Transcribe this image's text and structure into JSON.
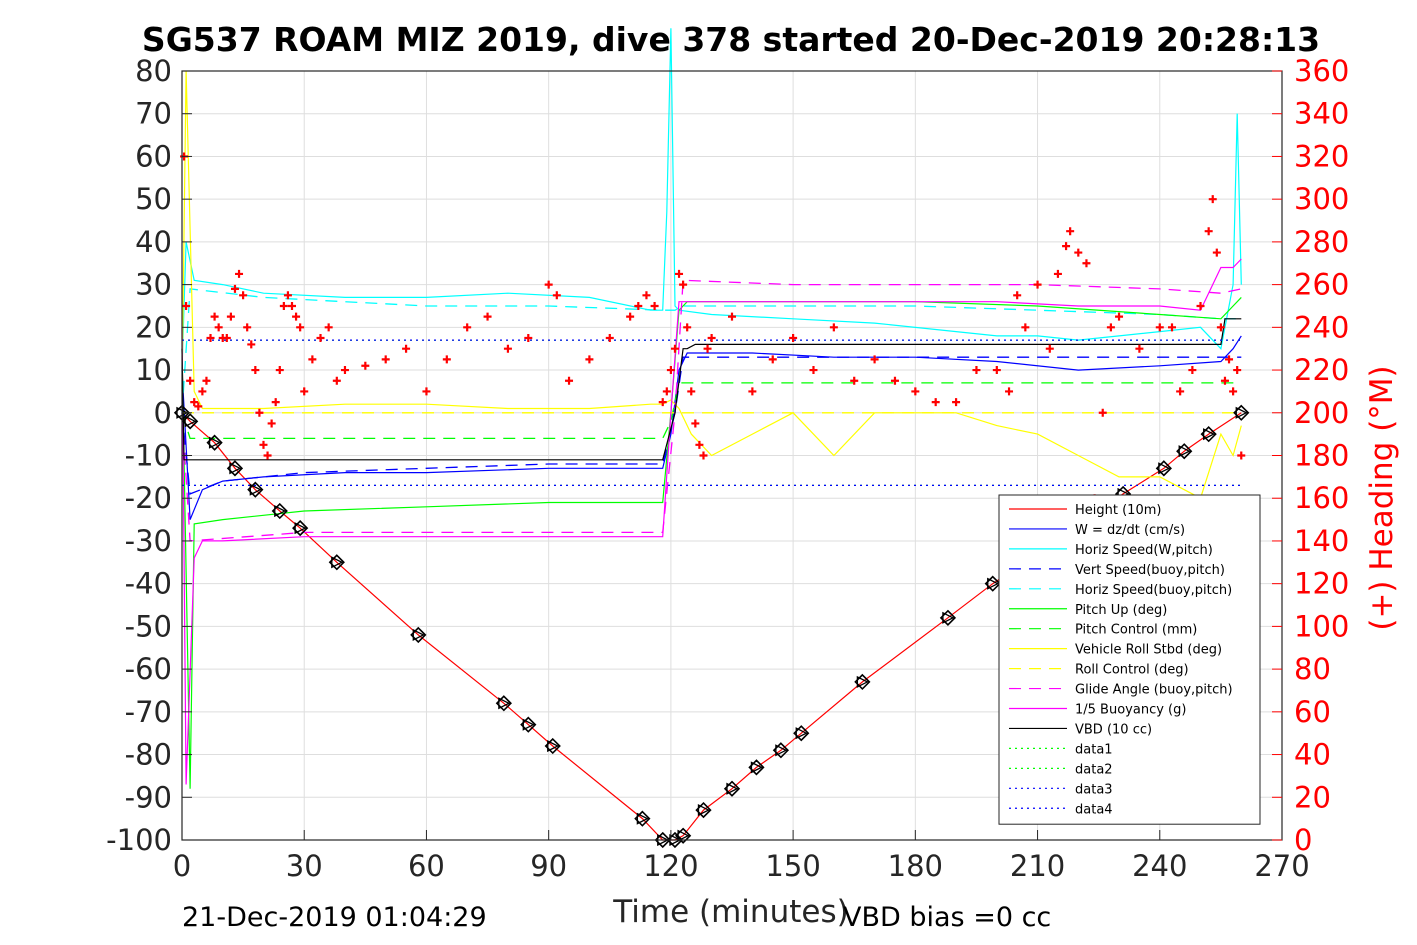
{
  "chart_data": {
    "type": "line",
    "title": "SG537 ROAM MIZ 2019, dive 378 started 20-Dec-2019 20:28:13",
    "xlabel": "Time (minutes)",
    "ylabel": "",
    "ylabel_right": "(+) Heading (°M)",
    "xlim": [
      0,
      270
    ],
    "ylim": [
      -100,
      80
    ],
    "ylim_right": [
      0,
      360
    ],
    "xticks": [
      "0",
      "30",
      "60",
      "90",
      "120",
      "150",
      "180",
      "210",
      "240",
      "270"
    ],
    "yticks": [
      "80",
      "70",
      "60",
      "50",
      "40",
      "30",
      "20",
      "10",
      "0",
      "-10",
      "-20",
      "-30",
      "-40",
      "-50",
      "-60",
      "-70",
      "-80",
      "-90",
      "-100"
    ],
    "yticks_right": [
      "360",
      "340",
      "320",
      "300",
      "280",
      "260",
      "240",
      "220",
      "200",
      "180",
      "160",
      "140",
      "120",
      "100",
      "80",
      "60",
      "40",
      "20",
      "0"
    ],
    "grid": true,
    "legend_position": "bottom-right",
    "footer_left": "21-Dec-2019 01:04:29",
    "footer_right": "VBD bias =0 cc",
    "series": [
      {
        "name": "Height (10m)",
        "color": "#ff0000",
        "style": "solid",
        "axis": "left",
        "x": [
          0,
          2,
          8,
          13,
          18,
          24,
          29,
          38,
          58,
          79,
          85,
          91,
          113,
          118,
          121,
          123,
          128,
          135,
          141,
          147,
          152,
          167,
          188,
          199,
          210,
          231,
          241,
          246,
          252,
          260
        ],
        "values": [
          0,
          -2,
          -7,
          -13,
          -18,
          -23,
          -27,
          -35,
          -52,
          -68,
          -73,
          -78,
          -95,
          -100,
          -100,
          -99,
          -93,
          -88,
          -83,
          -79,
          -75,
          -63,
          -48,
          -40,
          -33,
          -19,
          -13,
          -9,
          -5,
          0
        ]
      },
      {
        "name": "W = dz/dt (cm/s)",
        "color": "#0000ff",
        "style": "solid",
        "axis": "left",
        "x": [
          0,
          2,
          5,
          10,
          20,
          40,
          60,
          90,
          118,
          120,
          122,
          124,
          140,
          160,
          180,
          200,
          220,
          240,
          255,
          258,
          260
        ],
        "values": [
          10,
          -25,
          -18,
          -16,
          -15,
          -14,
          -14,
          -13,
          -13,
          -5,
          10,
          14,
          14,
          13,
          13,
          12,
          10,
          11,
          12,
          15,
          18
        ]
      },
      {
        "name": "Horiz Speed(W,pitch)",
        "color": "#00ffff",
        "style": "solid",
        "axis": "left",
        "x": [
          0,
          1,
          3,
          10,
          20,
          40,
          60,
          80,
          100,
          115,
          118,
          119,
          120,
          121,
          122,
          130,
          150,
          170,
          190,
          200,
          210,
          220,
          230,
          240,
          250,
          255,
          258,
          259,
          260
        ],
        "values": [
          10,
          40,
          31,
          30,
          28,
          27,
          27,
          28,
          27,
          24,
          24,
          47,
          90,
          25,
          24,
          23,
          22,
          21,
          19,
          18,
          18,
          17,
          18,
          19,
          20,
          15,
          30,
          70,
          30
        ]
      },
      {
        "name": "Vert Speed(buoy,pitch)",
        "color": "#0000ff",
        "style": "dashed",
        "axis": "left",
        "x": [
          0,
          2,
          10,
          30,
          60,
          90,
          118,
          121,
          123,
          140,
          160,
          180,
          200,
          220,
          240,
          255,
          260
        ],
        "values": [
          0,
          -19,
          -16,
          -14,
          -13,
          -12,
          -12,
          0,
          13,
          13,
          13,
          13,
          13,
          13,
          13,
          13,
          13
        ]
      },
      {
        "name": "Horiz Speed(buoy,pitch)",
        "color": "#00ffff",
        "style": "dashed",
        "axis": "left",
        "x": [
          0,
          2,
          20,
          60,
          90,
          118,
          121,
          123,
          150,
          180,
          210,
          240,
          255,
          260
        ],
        "values": [
          0,
          29,
          27,
          25,
          25,
          24,
          24,
          25,
          25,
          25,
          24,
          23,
          22,
          22
        ]
      },
      {
        "name": "Pitch Up (deg)",
        "color": "#00ff00",
        "style": "solid",
        "axis": "left",
        "x": [
          0,
          2,
          3,
          10,
          30,
          60,
          90,
          118,
          120,
          122,
          124,
          150,
          180,
          210,
          240,
          255,
          258,
          260
        ],
        "values": [
          15,
          -88,
          -26,
          -25,
          -23,
          -22,
          -21,
          -21,
          0,
          24,
          26,
          26,
          26,
          25,
          23,
          22,
          25,
          27
        ]
      },
      {
        "name": "Pitch Control (mm)",
        "color": "#00ff00",
        "style": "dashed",
        "axis": "left",
        "x": [
          0,
          2,
          30,
          60,
          90,
          118,
          120,
          122,
          150,
          180,
          210,
          240,
          260
        ],
        "values": [
          0,
          -6,
          -6,
          -6,
          -6,
          -6,
          -2,
          7,
          7,
          7,
          7,
          7,
          7
        ]
      },
      {
        "name": "Vehicle Roll Stbd (deg)",
        "color": "#ffff00",
        "style": "solid",
        "axis": "left",
        "x": [
          0,
          1,
          3,
          5,
          10,
          20,
          40,
          60,
          80,
          100,
          115,
          118,
          120,
          122,
          125,
          130,
          140,
          150,
          160,
          170,
          180,
          190,
          200,
          210,
          220,
          230,
          240,
          250,
          255,
          258,
          260
        ],
        "values": [
          5,
          80,
          5,
          1,
          1,
          1,
          2,
          2,
          1,
          1,
          2,
          2,
          3,
          1,
          -5,
          -10,
          -5,
          0,
          -10,
          0,
          0,
          0,
          -3,
          -5,
          -10,
          -15,
          -15,
          -20,
          -5,
          -10,
          -3
        ]
      },
      {
        "name": "Roll Control (deg)",
        "color": "#ffff00",
        "style": "dashed",
        "axis": "left",
        "x": [
          0,
          260
        ],
        "values": [
          0,
          0
        ]
      },
      {
        "name": "Glide Angle (buoy,pitch)",
        "color": "#ff00ff",
        "style": "dashed",
        "axis": "left",
        "x": [
          0,
          2,
          30,
          60,
          90,
          118,
          121,
          123,
          150,
          180,
          210,
          240,
          255,
          260
        ],
        "values": [
          0,
          -30,
          -28,
          -28,
          -28,
          -28,
          0,
          31,
          30,
          30,
          30,
          29,
          28,
          29
        ]
      },
      {
        "name": "1/5 Buoyancy (g)",
        "color": "#ff00ff",
        "style": "solid",
        "axis": "left",
        "x": [
          0,
          1,
          3,
          5,
          10,
          30,
          60,
          90,
          118,
          120,
          122,
          123,
          150,
          180,
          200,
          220,
          230,
          240,
          250,
          255,
          258,
          260
        ],
        "values": [
          20,
          -87,
          -34,
          -30,
          -30,
          -29,
          -29,
          -29,
          -29,
          0,
          26,
          26,
          26,
          26,
          26,
          25,
          25,
          25,
          24,
          34,
          34,
          36
        ]
      },
      {
        "name": "VBD (10 cc)",
        "color": "#000000",
        "style": "solid",
        "axis": "left",
        "x": [
          0,
          0.5,
          2,
          3,
          118,
          121,
          123,
          124,
          126,
          150,
          180,
          210,
          240,
          255,
          256,
          258,
          260
        ],
        "values": [
          15,
          -11,
          -11,
          -11,
          -11,
          0,
          15,
          15,
          16,
          16,
          16,
          16,
          16,
          16,
          22,
          22,
          22
        ]
      },
      {
        "name": "data1",
        "color": "#00ff00",
        "style": "dotted",
        "axis": "left",
        "x": [
          0,
          260
        ],
        "values": [
          17,
          17
        ]
      },
      {
        "name": "data2",
        "color": "#00ff00",
        "style": "dotted",
        "axis": "left",
        "x": [
          0,
          260
        ],
        "values": [
          -17,
          -17
        ]
      },
      {
        "name": "data3",
        "color": "#0000ff",
        "style": "dotted",
        "axis": "left",
        "x": [
          0,
          260
        ],
        "values": [
          17,
          17
        ]
      },
      {
        "name": "data4",
        "color": "#0000ff",
        "style": "dotted",
        "axis": "left",
        "x": [
          0,
          260
        ],
        "values": [
          -17,
          -17
        ]
      },
      {
        "name": "Heading",
        "color": "#ff0000",
        "style": "markers-plus",
        "axis": "right",
        "x": [
          0.5,
          1,
          2,
          3,
          4,
          5,
          6,
          7,
          8,
          9,
          10,
          11,
          12,
          13,
          14,
          15,
          16,
          17,
          18,
          19,
          20,
          21,
          22,
          23,
          24,
          25,
          26,
          27,
          28,
          29,
          30,
          32,
          34,
          36,
          38,
          40,
          45,
          50,
          55,
          60,
          65,
          70,
          75,
          80,
          85,
          90,
          92,
          95,
          100,
          105,
          110,
          112,
          114,
          116,
          118,
          119,
          120,
          121,
          122,
          123,
          124,
          125,
          126,
          127,
          128,
          129,
          130,
          135,
          140,
          145,
          150,
          155,
          160,
          165,
          170,
          175,
          180,
          185,
          190,
          195,
          200,
          203,
          205,
          207,
          210,
          213,
          215,
          217,
          218,
          220,
          222,
          224,
          226,
          228,
          230,
          235,
          240,
          243,
          245,
          248,
          250,
          252,
          253,
          254,
          255,
          256,
          257,
          258,
          259,
          260
        ],
        "values": [
          320,
          250,
          215,
          205,
          203,
          210,
          215,
          235,
          245,
          240,
          235,
          235,
          245,
          258,
          265,
          255,
          240,
          232,
          220,
          200,
          185,
          180,
          195,
          205,
          220,
          250,
          255,
          250,
          245,
          240,
          210,
          225,
          235,
          240,
          215,
          220,
          222,
          225,
          230,
          210,
          225,
          240,
          245,
          230,
          235,
          260,
          255,
          215,
          225,
          235,
          245,
          250,
          255,
          250,
          205,
          210,
          220,
          230,
          265,
          260,
          240,
          210,
          195,
          185,
          180,
          230,
          235,
          245,
          210,
          225,
          235,
          220,
          240,
          215,
          225,
          215,
          210,
          205,
          205,
          220,
          220,
          210,
          255,
          240,
          260,
          230,
          265,
          278,
          285,
          275,
          270,
          160,
          200,
          240,
          245,
          230,
          240,
          240,
          210,
          220,
          250,
          285,
          300,
          275,
          240,
          215,
          225,
          210,
          220,
          180
        ]
      }
    ]
  }
}
